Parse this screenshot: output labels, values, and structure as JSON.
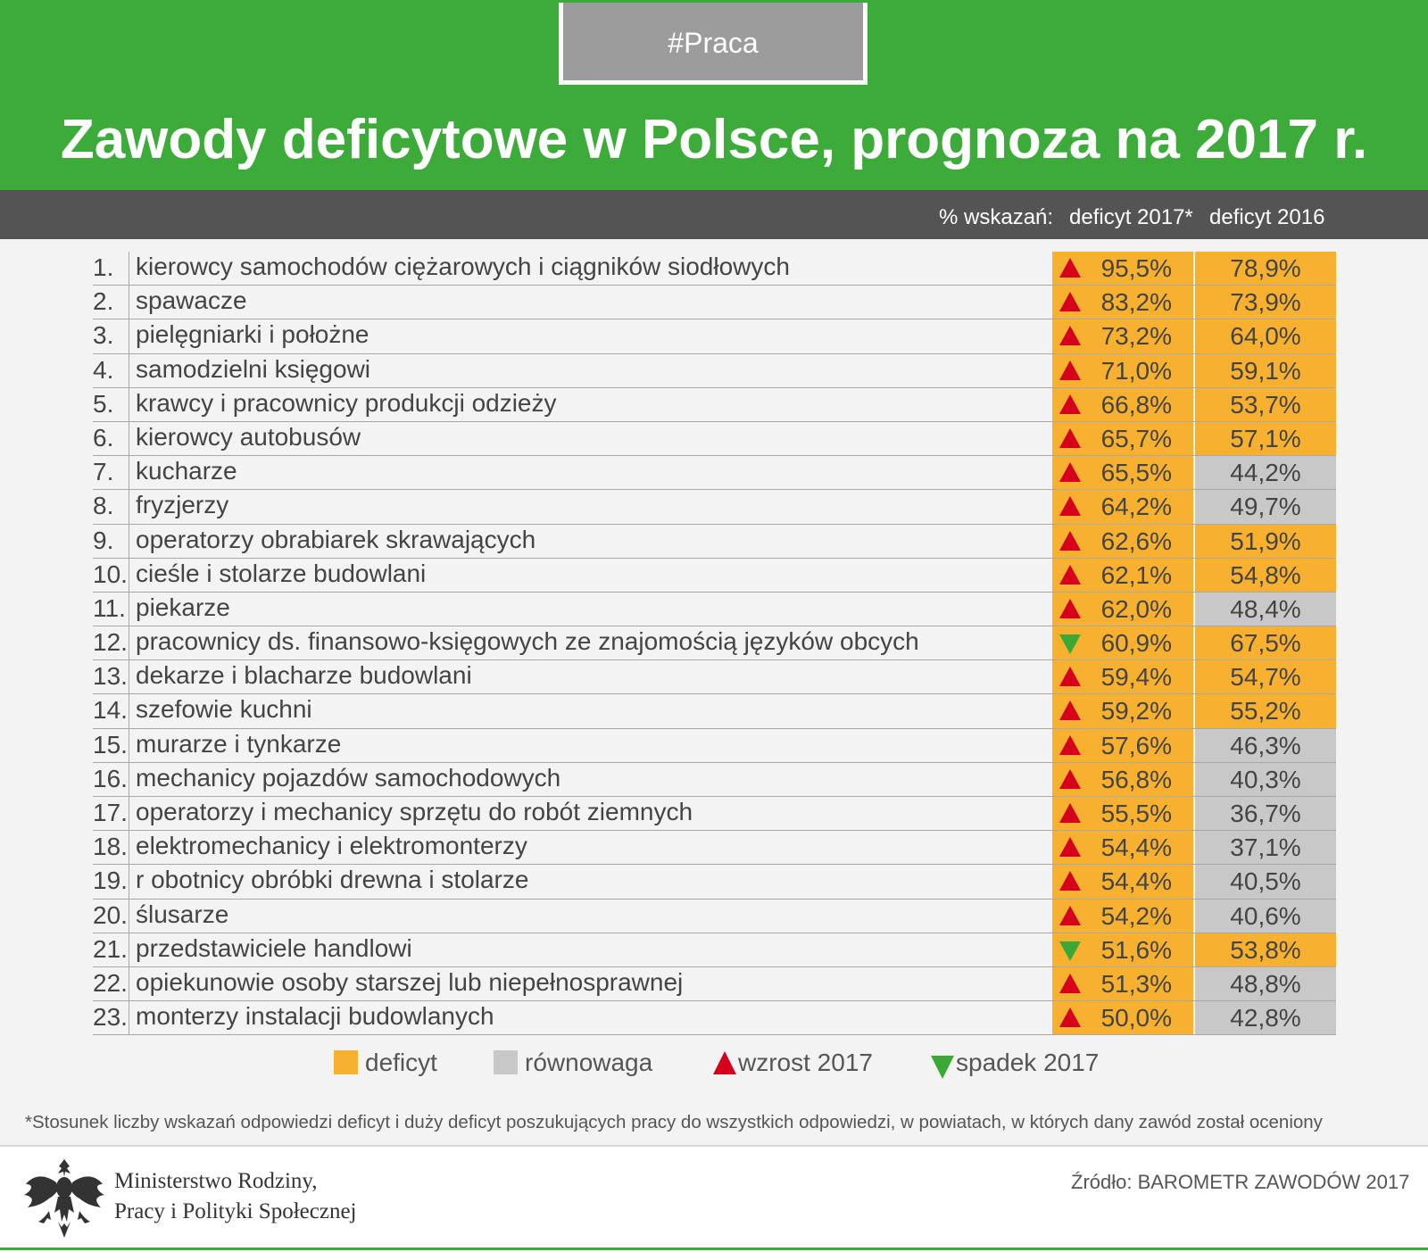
{
  "header": {
    "tag": "#Praca",
    "title": "Zawody deficytowe w Polsce, prognoza na 2017 r."
  },
  "subheader": {
    "label": "% wskazań:",
    "col_2017": "deficyt 2017*",
    "col_2016": "deficyt 2016"
  },
  "chart_data": {
    "type": "table",
    "title": "Zawody deficytowe w Polsce, prognoza na 2017 r.",
    "columns": [
      "% wskazań:",
      "deficyt 2017*",
      "deficyt 2016"
    ],
    "rows": [
      {
        "num": "1.",
        "label": "kierowcy samochodów ciężarowych i ciągników siodłowych",
        "v2017": "95,5%",
        "v2016": "78,9%",
        "trend": "up",
        "status2016": "deficit"
      },
      {
        "num": "2.",
        "label": "spawacze",
        "v2017": "83,2%",
        "v2016": "73,9%",
        "trend": "up",
        "status2016": "deficit"
      },
      {
        "num": "3.",
        "label": "pielęgniarki i położne",
        "v2017": "73,2%",
        "v2016": "64,0%",
        "trend": "up",
        "status2016": "deficit"
      },
      {
        "num": "4.",
        "label": "samodzielni księgowi",
        "v2017": "71,0%",
        "v2016": "59,1%",
        "trend": "up",
        "status2016": "deficit"
      },
      {
        "num": "5.",
        "label": "krawcy i pracownicy produkcji odzieży",
        "v2017": "66,8%",
        "v2016": "53,7%",
        "trend": "up",
        "status2016": "deficit"
      },
      {
        "num": "6.",
        "label": "kierowcy autobusów",
        "v2017": "65,7%",
        "v2016": "57,1%",
        "trend": "up",
        "status2016": "deficit"
      },
      {
        "num": "7.",
        "label": "kucharze",
        "v2017": "65,5%",
        "v2016": "44,2%",
        "trend": "up",
        "status2016": "balance"
      },
      {
        "num": "8.",
        "label": "fryzjerzy",
        "v2017": "64,2%",
        "v2016": "49,7%",
        "trend": "up",
        "status2016": "balance"
      },
      {
        "num": "9.",
        "label": "operatorzy obrabiarek skrawających",
        "v2017": "62,6%",
        "v2016": "51,9%",
        "trend": "up",
        "status2016": "deficit"
      },
      {
        "num": "10.",
        "label": "cieśle i stolarze budowlani",
        "v2017": "62,1%",
        "v2016": "54,8%",
        "trend": "up",
        "status2016": "deficit"
      },
      {
        "num": "11.",
        "label": "piekarze",
        "v2017": "62,0%",
        "v2016": "48,4%",
        "trend": "up",
        "status2016": "balance"
      },
      {
        "num": "12.",
        "label": "pracownicy ds. finansowo-księgowych ze znajomością języków obcych",
        "v2017": "60,9%",
        "v2016": "67,5%",
        "trend": "down",
        "status2016": "deficit"
      },
      {
        "num": "13.",
        "label": "dekarze i blacharze budowlani",
        "v2017": "59,4%",
        "v2016": "54,7%",
        "trend": "up",
        "status2016": "deficit"
      },
      {
        "num": "14.",
        "label": "szefowie kuchni",
        "v2017": "59,2%",
        "v2016": "55,2%",
        "trend": "up",
        "status2016": "deficit"
      },
      {
        "num": "15.",
        "label": "murarze i tynkarze",
        "v2017": "57,6%",
        "v2016": "46,3%",
        "trend": "up",
        "status2016": "balance"
      },
      {
        "num": "16.",
        "label": "mechanicy pojazdów samochodowych",
        "v2017": "56,8%",
        "v2016": "40,3%",
        "trend": "up",
        "status2016": "balance"
      },
      {
        "num": "17.",
        "label": "operatorzy i mechanicy sprzętu do robót ziemnych",
        "v2017": "55,5%",
        "v2016": "36,7%",
        "trend": "up",
        "status2016": "balance"
      },
      {
        "num": "18.",
        "label": "elektromechanicy i elektromonterzy",
        "v2017": "54,4%",
        "v2016": "37,1%",
        "trend": "up",
        "status2016": "balance"
      },
      {
        "num": "19.",
        "label": "r obotnicy obróbki drewna i stolarze",
        "v2017": "54,4%",
        "v2016": "40,5%",
        "trend": "up",
        "status2016": "balance"
      },
      {
        "num": "20.",
        "label": "ślusarze",
        "v2017": "54,2%",
        "v2016": "40,6%",
        "trend": "up",
        "status2016": "balance"
      },
      {
        "num": "21.",
        "label": "przedstawiciele handlowi",
        "v2017": "51,6%",
        "v2016": "53,8%",
        "trend": "down",
        "status2016": "deficit"
      },
      {
        "num": "22.",
        "label": "opiekunowie osoby starszej lub niepełnosprawnej",
        "v2017": "51,3%",
        "v2016": "48,8%",
        "trend": "up",
        "status2016": "balance"
      },
      {
        "num": "23.",
        "label": "monterzy instalacji budowlanych",
        "v2017": "50,0%",
        "v2016": "42,8%",
        "trend": "up",
        "status2016": "balance"
      }
    ]
  },
  "legend": {
    "deficit": "deficyt",
    "balance": "równowaga",
    "increase": "wzrost 2017",
    "decrease": "spadek 2017"
  },
  "colors": {
    "green": "#3dab3a",
    "deficit": "#f7b02f",
    "balance": "#c8c8c8",
    "up": "#d6001c",
    "down": "#3aa935"
  },
  "footnote": "*Stosunek liczby wskazań odpowiedzi deficyt i duży deficyt poszukujących pracy do wszystkich odpowiedzi, w powiatach, w których dany zawód został oceniony",
  "footer": {
    "ministry_line1": "Ministerstwo Rodziny,",
    "ministry_line2": "Pracy i Polityki Społecznej",
    "source": "Źródło: BAROMETR ZAWODÓW 2017"
  }
}
